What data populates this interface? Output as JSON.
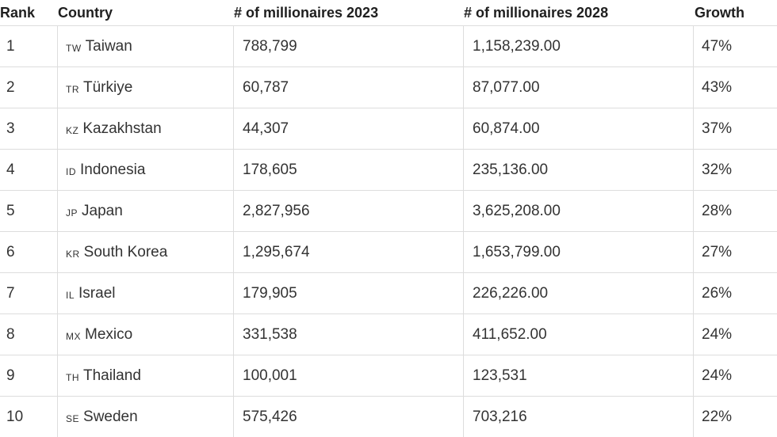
{
  "chart_data": {
    "type": "table",
    "columns": [
      "Rank",
      "Country",
      "# of millionaires 2023",
      "# of millionaires 2028",
      "Growth"
    ],
    "rows": [
      {
        "rank": "1",
        "code": "TW",
        "country": "Taiwan",
        "m2023": "788,799",
        "m2028": "1,158,239.00",
        "growth": "47%"
      },
      {
        "rank": "2",
        "code": "TR",
        "country": "Türkiye",
        "m2023": "60,787",
        "m2028": "87,077.00",
        "growth": "43%"
      },
      {
        "rank": "3",
        "code": "KZ",
        "country": "Kazakhstan",
        "m2023": "44,307",
        "m2028": "60,874.00",
        "growth": "37%"
      },
      {
        "rank": "4",
        "code": "ID",
        "country": "Indonesia",
        "m2023": "178,605",
        "m2028": "235,136.00",
        "growth": "32%"
      },
      {
        "rank": "5",
        "code": "JP",
        "country": "Japan",
        "m2023": "2,827,956",
        "m2028": "3,625,208.00",
        "growth": "28%"
      },
      {
        "rank": "6",
        "code": "KR",
        "country": "South Korea",
        "m2023": "1,295,674",
        "m2028": "1,653,799.00",
        "growth": "27%"
      },
      {
        "rank": "7",
        "code": "IL",
        "country": "Israel",
        "m2023": "179,905",
        "m2028": "226,226.00",
        "growth": "26%"
      },
      {
        "rank": "8",
        "code": "MX",
        "country": "Mexico",
        "m2023": "331,538",
        "m2028": "411,652.00",
        "growth": "24%"
      },
      {
        "rank": "9",
        "code": "TH",
        "country": "Thailand",
        "m2023": "100,001",
        "m2028": "123,531",
        "growth": "24%"
      },
      {
        "rank": "10",
        "code": "SE",
        "country": "Sweden",
        "m2023": "575,426",
        "m2028": "703,216",
        "growth": "22%"
      }
    ]
  }
}
